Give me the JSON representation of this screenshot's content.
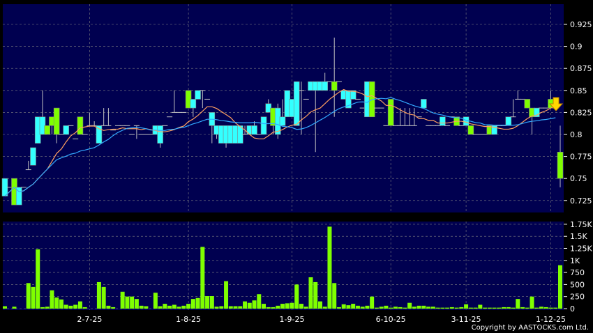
{
  "chart_data": [
    {
      "type": "candlestick",
      "colors": {
        "background": "#000050",
        "up": "#7fff00",
        "down": "#33ffff",
        "wick": "#c0c0c0",
        "ma_short": "#ffa060",
        "ma_long": "#33aaff",
        "grid": "#808080",
        "marker": "#ffd700"
      },
      "ylim": [
        0.72,
        0.94
      ],
      "y_ticks": [
        "0.925",
        "0.9",
        "0.875",
        "0.85",
        "0.825",
        "0.8",
        "0.775",
        "0.75",
        "0.725"
      ],
      "x_ticks": [
        {
          "label": "2-7-25",
          "index": 18
        },
        {
          "label": "1-8-25",
          "index": 39
        },
        {
          "label": "1-9-25",
          "index": 61
        },
        {
          "label": "6-10-25",
          "index": 82
        },
        {
          "label": "3-11-25",
          "index": 98
        },
        {
          "label": "1-12-25",
          "index": 116
        }
      ],
      "grid": true,
      "ohlc": [
        [
          0.75,
          0.75,
          0.73,
          0.73
        ],
        [
          0.74,
          0.74,
          0.74,
          0.74
        ],
        [
          0.72,
          0.75,
          0.72,
          0.75
        ],
        [
          0.74,
          0.74,
          0.72,
          0.72
        ],
        [
          0.74,
          0.74,
          0.74,
          0.74
        ],
        [
          0.76,
          0.77,
          0.76,
          0.76
        ],
        [
          0.785,
          0.785,
          0.765,
          0.765
        ],
        [
          0.82,
          0.82,
          0.79,
          0.79
        ],
        [
          0.82,
          0.85,
          0.8,
          0.8
        ],
        [
          0.8,
          0.81,
          0.8,
          0.81
        ],
        [
          0.81,
          0.82,
          0.8,
          0.82
        ],
        [
          0.8,
          0.83,
          0.79,
          0.83
        ],
        [
          0.8,
          0.8,
          0.8,
          0.8
        ],
        [
          0.81,
          0.81,
          0.8,
          0.8
        ],
        [
          0.81,
          0.81,
          0.81,
          0.81
        ],
        [
          0.795,
          0.795,
          0.795,
          0.795
        ],
        [
          0.8,
          0.82,
          0.8,
          0.82
        ],
        [
          0.8,
          0.8,
          0.8,
          0.8
        ],
        [
          0.81,
          0.825,
          0.81,
          0.81
        ],
        [
          0.81,
          0.815,
          0.81,
          0.81
        ],
        [
          0.81,
          0.81,
          0.79,
          0.79
        ],
        [
          0.81,
          0.83,
          0.81,
          0.81
        ],
        [
          0.81,
          0.83,
          0.81,
          0.81
        ],
        [
          0.805,
          0.805,
          0.805,
          0.805
        ],
        [
          0.81,
          0.81,
          0.81,
          0.81
        ],
        [
          0.81,
          0.81,
          0.81,
          0.81
        ],
        [
          0.81,
          0.81,
          0.81,
          0.81
        ],
        [
          0.8,
          0.8,
          0.8,
          0.8
        ],
        [
          0.81,
          0.81,
          0.795,
          0.81
        ],
        [
          0.8,
          0.8,
          0.8,
          0.8
        ],
        [
          0.8,
          0.8,
          0.8,
          0.8
        ],
        [
          0.8,
          0.8,
          0.8,
          0.8
        ],
        [
          0.81,
          0.81,
          0.8,
          0.8
        ],
        [
          0.81,
          0.81,
          0.785,
          0.79
        ],
        [
          0.81,
          0.81,
          0.81,
          0.81
        ],
        [
          0.82,
          0.82,
          0.82,
          0.82
        ],
        [
          0.825,
          0.85,
          0.825,
          0.825
        ],
        [
          0.825,
          0.825,
          0.825,
          0.825
        ],
        [
          0.825,
          0.825,
          0.825,
          0.825
        ],
        [
          0.83,
          0.85,
          0.83,
          0.85
        ],
        [
          0.84,
          0.84,
          0.82,
          0.83
        ],
        [
          0.85,
          0.85,
          0.84,
          0.84
        ],
        [
          0.85,
          0.85,
          0.83,
          0.85
        ],
        [
          0.84,
          0.84,
          0.84,
          0.84
        ],
        [
          0.825,
          0.825,
          0.79,
          0.81
        ],
        [
          0.81,
          0.81,
          0.795,
          0.8
        ],
        [
          0.81,
          0.81,
          0.79,
          0.79
        ],
        [
          0.81,
          0.81,
          0.785,
          0.79
        ],
        [
          0.81,
          0.81,
          0.79,
          0.79
        ],
        [
          0.81,
          0.81,
          0.79,
          0.79
        ],
        [
          0.81,
          0.81,
          0.79,
          0.79
        ],
        [
          0.8,
          0.81,
          0.8,
          0.8
        ],
        [
          0.81,
          0.81,
          0.8,
          0.8
        ],
        [
          0.81,
          0.815,
          0.8,
          0.8
        ],
        [
          0.8,
          0.8,
          0.8,
          0.8
        ],
        [
          0.82,
          0.82,
          0.8,
          0.8
        ],
        [
          0.835,
          0.84,
          0.825,
          0.825
        ],
        [
          0.81,
          0.83,
          0.8,
          0.83
        ],
        [
          0.83,
          0.835,
          0.795,
          0.8
        ],
        [
          0.82,
          0.84,
          0.81,
          0.81
        ],
        [
          0.85,
          0.85,
          0.82,
          0.82
        ],
        [
          0.84,
          0.84,
          0.82,
          0.82
        ],
        [
          0.86,
          0.86,
          0.81,
          0.81
        ],
        [
          0.85,
          0.86,
          0.8,
          0.85
        ],
        [
          0.84,
          0.84,
          0.84,
          0.84
        ],
        [
          0.86,
          0.86,
          0.85,
          0.85
        ],
        [
          0.86,
          0.86,
          0.78,
          0.85
        ],
        [
          0.86,
          0.86,
          0.85,
          0.85
        ],
        [
          0.86,
          0.87,
          0.85,
          0.85
        ],
        [
          0.86,
          0.86,
          0.86,
          0.86
        ],
        [
          0.85,
          0.91,
          0.82,
          0.86
        ],
        [
          0.86,
          0.86,
          0.86,
          0.86
        ],
        [
          0.85,
          0.85,
          0.84,
          0.84
        ],
        [
          0.85,
          0.85,
          0.83,
          0.83
        ],
        [
          0.85,
          0.85,
          0.84,
          0.84
        ],
        [
          0.84,
          0.84,
          0.84,
          0.84
        ],
        [
          0.83,
          0.83,
          0.83,
          0.83
        ],
        [
          0.86,
          0.86,
          0.82,
          0.82
        ],
        [
          0.82,
          0.86,
          0.82,
          0.86
        ],
        [
          0.83,
          0.83,
          0.83,
          0.83
        ],
        [
          0.83,
          0.83,
          0.83,
          0.83
        ],
        [
          0.81,
          0.81,
          0.81,
          0.81
        ],
        [
          0.81,
          0.84,
          0.81,
          0.84
        ],
        [
          0.81,
          0.81,
          0.81,
          0.81
        ],
        [
          0.81,
          0.83,
          0.81,
          0.81
        ],
        [
          0.81,
          0.83,
          0.81,
          0.81
        ],
        [
          0.81,
          0.83,
          0.81,
          0.81
        ],
        [
          0.81,
          0.83,
          0.81,
          0.81
        ],
        [
          0.82,
          0.82,
          0.82,
          0.82
        ],
        [
          0.84,
          0.84,
          0.83,
          0.83
        ],
        [
          0.81,
          0.81,
          0.81,
          0.81
        ],
        [
          0.81,
          0.81,
          0.81,
          0.81
        ],
        [
          0.81,
          0.81,
          0.81,
          0.81
        ],
        [
          0.82,
          0.82,
          0.81,
          0.81
        ],
        [
          0.81,
          0.81,
          0.81,
          0.81
        ],
        [
          0.82,
          0.82,
          0.82,
          0.82
        ],
        [
          0.81,
          0.82,
          0.81,
          0.82
        ],
        [
          0.81,
          0.81,
          0.81,
          0.81
        ],
        [
          0.82,
          0.82,
          0.81,
          0.81
        ],
        [
          0.8,
          0.81,
          0.8,
          0.81
        ],
        [
          0.8,
          0.8,
          0.8,
          0.8
        ],
        [
          0.8,
          0.8,
          0.8,
          0.8
        ],
        [
          0.8,
          0.8,
          0.8,
          0.8
        ],
        [
          0.8,
          0.81,
          0.8,
          0.81
        ],
        [
          0.81,
          0.81,
          0.8,
          0.8
        ],
        [
          0.81,
          0.81,
          0.81,
          0.81
        ],
        [
          0.81,
          0.81,
          0.81,
          0.81
        ],
        [
          0.82,
          0.82,
          0.81,
          0.81
        ],
        [
          0.82,
          0.84,
          0.82,
          0.82
        ],
        [
          0.84,
          0.85,
          0.84,
          0.84
        ],
        [
          0.84,
          0.84,
          0.84,
          0.84
        ],
        [
          0.83,
          0.84,
          0.83,
          0.84
        ],
        [
          0.82,
          0.83,
          0.8,
          0.83
        ],
        [
          0.83,
          0.83,
          0.82,
          0.82
        ],
        [
          0.83,
          0.83,
          0.83,
          0.83
        ],
        [
          0.83,
          0.83,
          0.83,
          0.83
        ],
        [
          0.83,
          0.85,
          0.83,
          0.84
        ],
        [
          0.83,
          0.83,
          0.83,
          0.83
        ],
        [
          0.75,
          0.81,
          0.74,
          0.78
        ]
      ]
    },
    {
      "type": "bar",
      "ylim": [
        0,
        1800
      ],
      "y_ticks": [
        "1.75K",
        "1.5K",
        "1.25K",
        "1K",
        "750",
        "500",
        "250",
        "0"
      ],
      "y_tick_values": [
        1750,
        1500,
        1250,
        1000,
        750,
        500,
        250,
        0
      ],
      "grid": true,
      "volume": [
        50,
        0,
        40,
        0,
        0,
        530,
        450,
        1230,
        30,
        40,
        380,
        230,
        190,
        80,
        60,
        80,
        150,
        30,
        0,
        0,
        550,
        450,
        60,
        30,
        0,
        350,
        250,
        250,
        200,
        60,
        50,
        0,
        330,
        50,
        100,
        60,
        80,
        40,
        60,
        100,
        200,
        220,
        1280,
        260,
        260,
        40,
        50,
        570,
        50,
        50,
        50,
        150,
        120,
        170,
        300,
        100,
        30,
        30,
        60,
        100,
        110,
        120,
        500,
        100,
        40,
        650,
        550,
        150,
        40,
        1700,
        530,
        30,
        90,
        70,
        100,
        60,
        40,
        60,
        250,
        20,
        40,
        60,
        20,
        40,
        30,
        20,
        120,
        40,
        60,
        60,
        40,
        40,
        20,
        20,
        20,
        30,
        20,
        30,
        90,
        20,
        20,
        80,
        20,
        20,
        20,
        20,
        30,
        30,
        20,
        200,
        30,
        20,
        250,
        20,
        40,
        30,
        20,
        20,
        900
      ]
    }
  ],
  "footer": {
    "copyright": "Copyright by AASTOCKS.com Ltd."
  }
}
